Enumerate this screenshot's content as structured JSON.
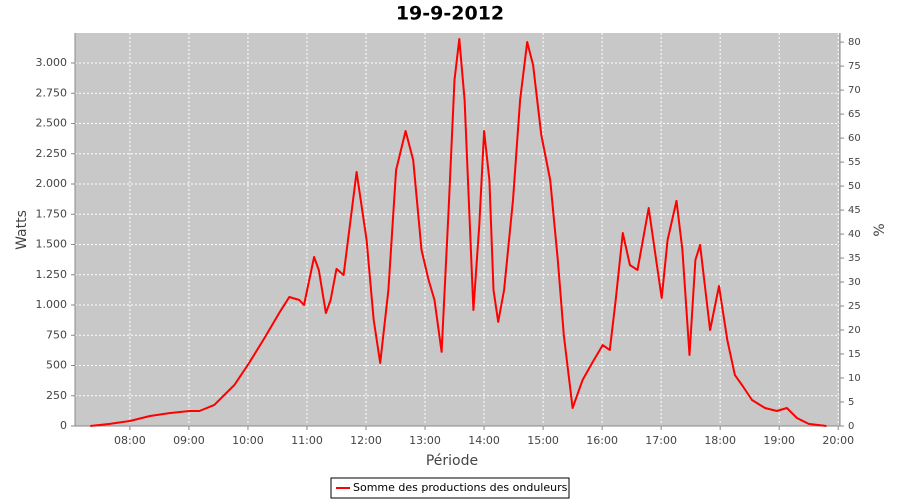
{
  "chart_data": {
    "type": "line",
    "title": "19-9-2012",
    "x_label": "Période",
    "y_label": "Watts",
    "y2_label": "%",
    "x": [
      7.33,
      7.66,
      8.0,
      8.34,
      8.67,
      9.01,
      9.18,
      9.43,
      9.77,
      10.02,
      10.28,
      10.53,
      10.7,
      10.87,
      10.95,
      11.12,
      11.2,
      11.32,
      11.4,
      11.5,
      11.62,
      11.84,
      12.01,
      12.13,
      12.24,
      12.38,
      12.51,
      12.67,
      12.8,
      12.94,
      13.06,
      13.16,
      13.28,
      13.4,
      13.5,
      13.58,
      13.67,
      13.82,
      13.92,
      14.0,
      14.09,
      14.16,
      14.24,
      14.34,
      14.49,
      14.61,
      14.73,
      14.83,
      14.97,
      15.12,
      15.25,
      15.35,
      15.5,
      15.67,
      15.84,
      16.01,
      16.13,
      16.23,
      16.35,
      16.47,
      16.6,
      16.79,
      16.89,
      17.01,
      17.11,
      17.26,
      17.36,
      17.48,
      17.58,
      17.66,
      17.83,
      17.98,
      18.12,
      18.25,
      18.37,
      18.54,
      18.76,
      18.96,
      19.13,
      19.3,
      19.5,
      19.8
    ],
    "series": [
      {
        "name": "Somme des productions des onduleurs",
        "color": "#ff0000",
        "values": [
          0,
          17,
          41,
          83,
          107,
          124,
          124,
          174,
          339,
          521,
          727,
          934,
          1066,
          1041,
          1000,
          1397,
          1289,
          934,
          1041,
          1298,
          1248,
          2099,
          1537,
          876,
          521,
          1124,
          2116,
          2438,
          2198,
          1455,
          1207,
          1041,
          612,
          1785,
          2860,
          3198,
          2694,
          959,
          1661,
          2438,
          2033,
          1124,
          860,
          1124,
          1868,
          2694,
          3174,
          2983,
          2405,
          2033,
          1372,
          752,
          149,
          380,
          529,
          669,
          628,
          1041,
          1595,
          1331,
          1289,
          1802,
          1455,
          1058,
          1537,
          1860,
          1455,
          587,
          1372,
          1496,
          793,
          1157,
          711,
          421,
          339,
          215,
          149,
          124,
          149,
          66,
          17,
          0
        ]
      }
    ],
    "xlim": [
      7.07,
      20.03
    ],
    "xticks": [
      {
        "value": 8,
        "label": "08:00"
      },
      {
        "value": 9,
        "label": "09:00"
      },
      {
        "value": 10,
        "label": "10:00"
      },
      {
        "value": 11,
        "label": "11:00"
      },
      {
        "value": 12,
        "label": "12:00"
      },
      {
        "value": 13,
        "label": "13:00"
      },
      {
        "value": 14,
        "label": "14:00"
      },
      {
        "value": 15,
        "label": "15:00"
      },
      {
        "value": 16,
        "label": "16:00"
      },
      {
        "value": 17,
        "label": "17:00"
      },
      {
        "value": 18,
        "label": "18:00"
      },
      {
        "value": 19,
        "label": "19:00"
      },
      {
        "value": 20,
        "label": "20:00"
      }
    ],
    "ylim": [
      0,
      3248
    ],
    "yticks": [
      0,
      250,
      500,
      750,
      {
        "value": 1000,
        "label": "1.000"
      },
      {
        "value": 1250,
        "label": "1.250"
      },
      {
        "value": 1500,
        "label": "1.500"
      },
      {
        "value": 1750,
        "label": "1.750"
      },
      {
        "value": 2000,
        "label": "2.000"
      },
      {
        "value": 2250,
        "label": "2.250"
      },
      {
        "value": 2500,
        "label": "2.500"
      },
      {
        "value": 2750,
        "label": "2.750"
      },
      {
        "value": 3000,
        "label": "3.000"
      }
    ],
    "y2lim": [
      0,
      81.9
    ],
    "y2ticks": [
      0,
      5,
      10,
      15,
      20,
      25,
      30,
      35,
      40,
      45,
      50,
      55,
      60,
      65,
      70,
      75,
      80
    ],
    "grid": true,
    "legend": "bottom"
  }
}
